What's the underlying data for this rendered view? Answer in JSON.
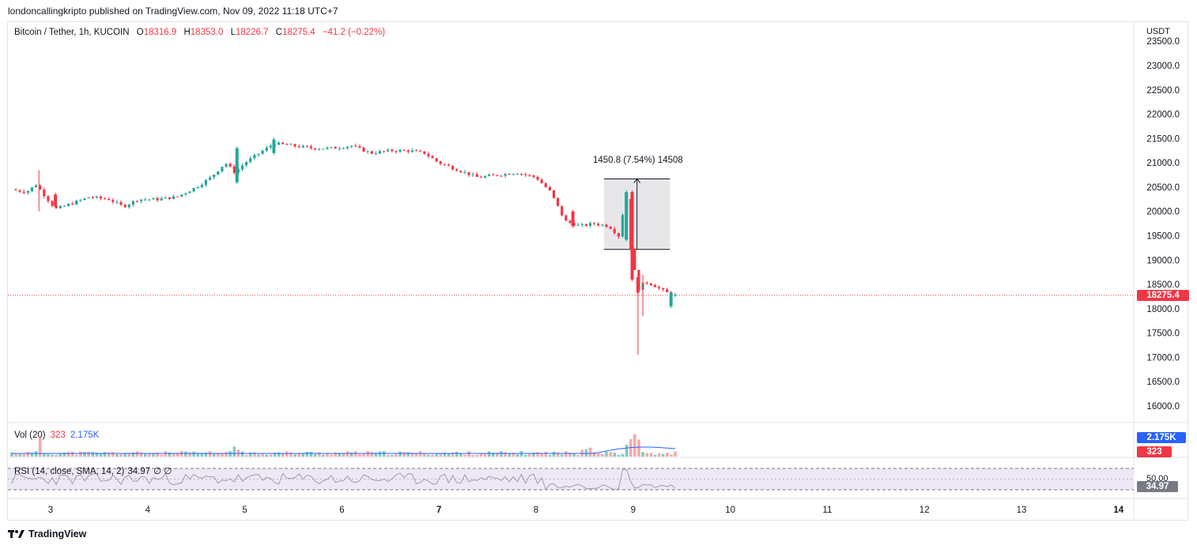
{
  "publisher_line": "londoncallingkripto published on TradingView.com, Nov 09, 2022 11:18 UTC+7",
  "symbol": "Bitcoin / Tether, 1h, KUCOIN",
  "ohlc": {
    "o_label": "O",
    "o": "18316.9",
    "h_label": "H",
    "h": "18353.0",
    "l_label": "L",
    "l": "18226.7",
    "c_label": "C",
    "c": "18275.4",
    "change": "−41.2 (−0.22%)"
  },
  "currency": "USDT",
  "last_price": "18275.4",
  "measure_label": "1450.8 (7.54%) 14508",
  "volume": {
    "label": "Vol (20)",
    "last": "323",
    "ma": "2.175K"
  },
  "rsi": {
    "label": "RSI (14, close, SMA, 14, 2)",
    "value": "34.97",
    "extra": "∅ ∅",
    "level_label": "50.00"
  },
  "brand": "TradingView",
  "colors": {
    "up": "#26a69a",
    "down": "#f23645",
    "ma": "#2962ff",
    "rsi": "#7e57c2",
    "rsi_fill": "#ede7f6"
  },
  "chart_data": {
    "type": "candlestick",
    "title": "Bitcoin / Tether, 1h, KUCOIN",
    "y_ticks": [
      "16000.0",
      "16500.0",
      "17000.0",
      "17500.0",
      "18000.0",
      "18500.0",
      "19000.0",
      "19500.0",
      "20000.0",
      "20500.0",
      "21000.0",
      "21500.0",
      "22000.0",
      "22500.0",
      "23000.0",
      "23500.0"
    ],
    "x_ticks": [
      "3",
      "4",
      "5",
      "6",
      "7",
      "8",
      "9",
      "10",
      "11",
      "12",
      "13",
      "14"
    ],
    "ylim": [
      15750,
      23550
    ],
    "series": [
      {
        "name": "BTCUSDT",
        "close_path": [
          [
            2.6,
            20450
          ],
          [
            2.75,
            20400
          ],
          [
            2.85,
            20550
          ],
          [
            2.95,
            20300
          ],
          [
            3.05,
            20050
          ],
          [
            3.2,
            20150
          ],
          [
            3.4,
            20300
          ],
          [
            3.6,
            20250
          ],
          [
            3.75,
            20100
          ],
          [
            3.9,
            20250
          ],
          [
            4.1,
            20250
          ],
          [
            4.3,
            20300
          ],
          [
            4.5,
            20500
          ],
          [
            4.65,
            20700
          ],
          [
            4.8,
            21000
          ],
          [
            4.9,
            20800
          ],
          [
            5.0,
            21000
          ],
          [
            5.15,
            21200
          ],
          [
            5.3,
            21400
          ],
          [
            5.5,
            21350
          ],
          [
            5.7,
            21300
          ],
          [
            5.9,
            21300
          ],
          [
            6.1,
            21350
          ],
          [
            6.3,
            21200
          ],
          [
            6.5,
            21250
          ],
          [
            6.7,
            21250
          ],
          [
            6.85,
            21200
          ],
          [
            7.0,
            21000
          ],
          [
            7.2,
            20850
          ],
          [
            7.4,
            20700
          ],
          [
            7.6,
            20750
          ],
          [
            7.8,
            20800
          ],
          [
            8.0,
            20700
          ],
          [
            8.15,
            20400
          ],
          [
            8.3,
            19800
          ],
          [
            8.45,
            19700
          ],
          [
            8.6,
            19750
          ],
          [
            8.75,
            19700
          ],
          [
            8.85,
            19500
          ],
          [
            8.93,
            20350
          ],
          [
            8.97,
            19300
          ],
          [
            9.05,
            18400
          ],
          [
            9.12,
            18550
          ],
          [
            9.2,
            18500
          ],
          [
            9.28,
            18400
          ],
          [
            9.38,
            18300
          ],
          [
            9.45,
            18275
          ]
        ],
        "up_candles": [
          [
            4.92,
            20600,
            21300
          ],
          [
            5.3,
            21200,
            21480
          ],
          [
            8.93,
            19420,
            20400
          ],
          [
            9.39,
            18050,
            18330
          ]
        ],
        "down_candles": [
          [
            3.05,
            20350,
            20100
          ],
          [
            8.38,
            20000,
            19700
          ],
          [
            8.99,
            20400,
            18600
          ],
          [
            9.05,
            18650,
            18330
          ]
        ],
        "wicks": [
          [
            2.88,
            20000,
            20850
          ],
          [
            9.05,
            17050,
            18600
          ],
          [
            9.1,
            17850,
            18700
          ]
        ]
      }
    ],
    "measure": {
      "x_from": 8.7,
      "x_to": 9.38,
      "y_from": 19220,
      "y_to": 20670
    },
    "volume": {
      "ylim": [
        0,
        3000
      ],
      "ma_level": 2175
    },
    "rsi": {
      "upper": 70,
      "middle": 50,
      "lower": 30,
      "value": 34.97
    }
  }
}
